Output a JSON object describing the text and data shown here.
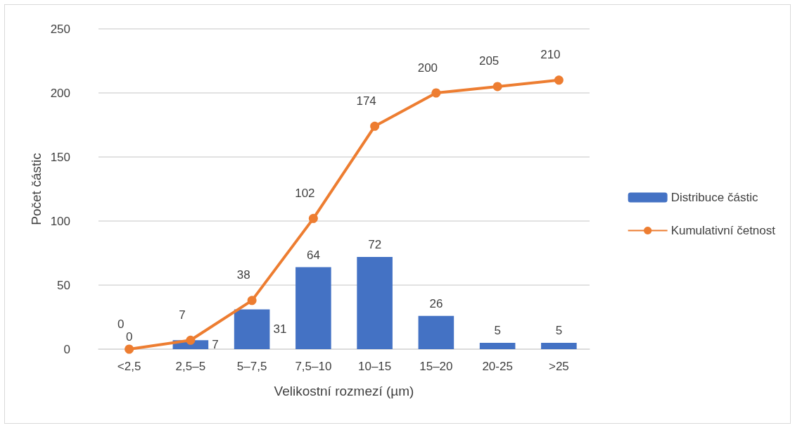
{
  "chart_data": {
    "type": "bar",
    "xlabel": "Velikostní rozmezí (µm)",
    "ylabel": "Počet částic",
    "categories": [
      "<2,5",
      "2,5–5",
      "5–7,5",
      "7,5–10",
      "10–15",
      "15–20",
      "20-25",
      ">25"
    ],
    "series": [
      {
        "name": "Distribuce částic",
        "type": "bar",
        "color": "#4472c4",
        "values": [
          0,
          7,
          31,
          64,
          72,
          26,
          5,
          5
        ]
      },
      {
        "name": "Kumulativní četnost",
        "type": "line",
        "color": "#ed7d31",
        "values": [
          0,
          7,
          38,
          102,
          174,
          200,
          205,
          210
        ]
      }
    ],
    "ylim": [
      0,
      250
    ],
    "yticks": [
      0,
      50,
      100,
      150,
      200,
      250
    ],
    "grid": "y",
    "legend": "right",
    "marker": "circle",
    "line_style": "solid",
    "data_labels": true
  }
}
